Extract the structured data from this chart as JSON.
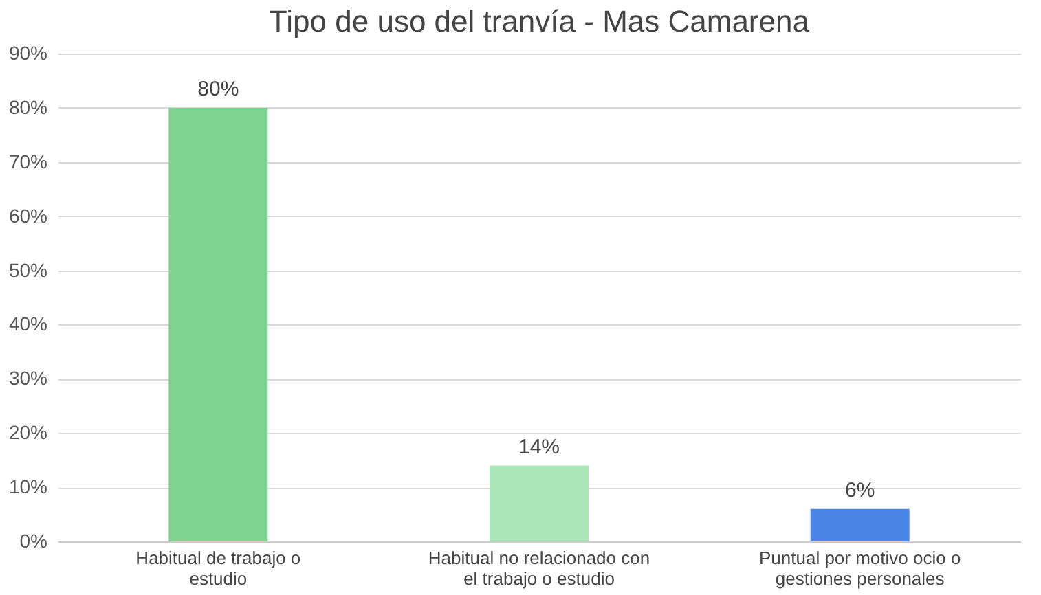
{
  "chart_data": {
    "type": "bar",
    "title": "Tipo de uso del tranvía - Mas Camarena",
    "categories": [
      "Habitual de trabajo o estudio",
      "Habitual no relacionado con el trabajo o estudio",
      "Puntual por motivo ocio o gestiones personales"
    ],
    "values": [
      80,
      14,
      6
    ],
    "colors": [
      "#7dd38f",
      "#a8e6b5",
      "#4a86e8"
    ],
    "value_labels": [
      "80%",
      "14%",
      "6%"
    ],
    "ylim": [
      0,
      90
    ],
    "yticks": [
      {
        "value": 0,
        "label": "0%"
      },
      {
        "value": 10,
        "label": "10%"
      },
      {
        "value": 20,
        "label": "20%"
      },
      {
        "value": 30,
        "label": "30%"
      },
      {
        "value": 40,
        "label": "40%"
      },
      {
        "value": 50,
        "label": "50%"
      },
      {
        "value": 60,
        "label": "60%"
      },
      {
        "value": 70,
        "label": "70%"
      },
      {
        "value": 80,
        "label": "80%"
      },
      {
        "value": 90,
        "label": "90%"
      }
    ],
    "grid": "y"
  }
}
